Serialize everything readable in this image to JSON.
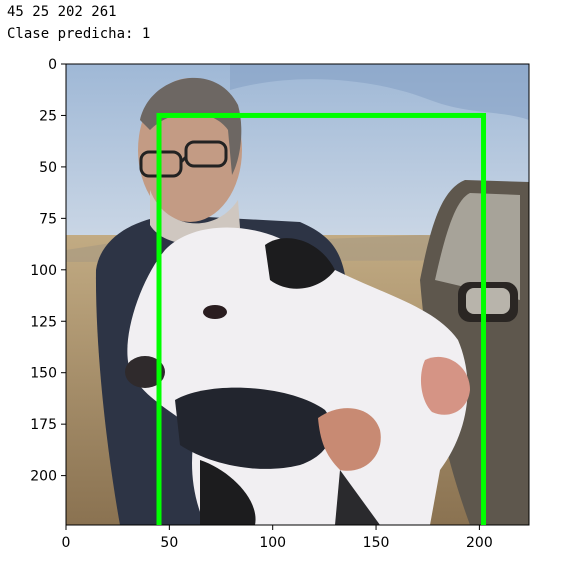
{
  "output_lines": [
    "45 25 202 261",
    "Clase predicha: 1"
  ],
  "chart_data": {
    "type": "image",
    "xlim": [
      0,
      224
    ],
    "ylim": [
      224,
      0
    ],
    "x_ticks": [
      0,
      50,
      100,
      150,
      200
    ],
    "y_ticks": [
      0,
      25,
      50,
      75,
      100,
      125,
      150,
      175,
      200
    ],
    "bounding_box": {
      "x1": 45,
      "y1": 25,
      "x2": 202,
      "y2": 261,
      "color": "#00ff00"
    },
    "image_subject": "man holding a white calf outdoors"
  },
  "colors": {
    "box": "#00ff00",
    "sky": "#c9d6e6",
    "ground": "#b29a72"
  }
}
